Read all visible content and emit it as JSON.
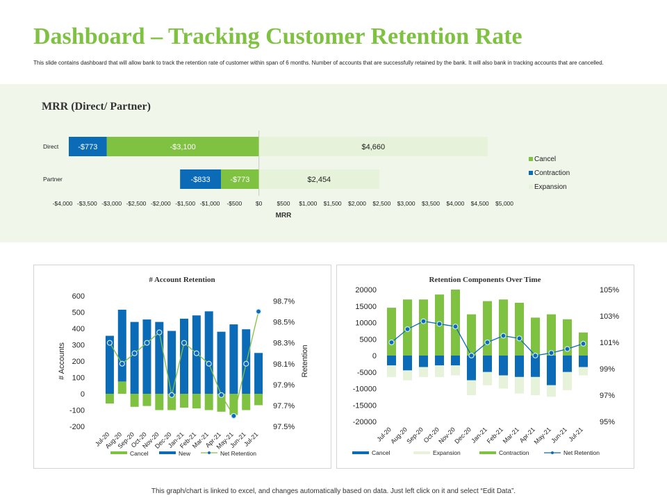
{
  "header": {
    "title": "Dashboard – Tracking Customer Retention Rate",
    "subtitle": "This slide contains dashboard that will allow bank to track the retention rate of customer within span of 6 months. Number of accounts that are successfully retained by the bank. It will also bank in tracking accounts that are cancelled."
  },
  "footer": {
    "note": "This graph/chart is linked to excel, and changes automatically based on data. Just left click on it and select “Edit Data”."
  },
  "colors": {
    "cancel": "#7fc241",
    "contraction": "#0b6bb7",
    "expansion": "#e6f2d9",
    "new": "#0b6bb7",
    "line": "#7fc241",
    "marker": "#0b6bb7"
  },
  "chart_data": [
    {
      "type": "bar",
      "orientation": "horizontal",
      "stacked": true,
      "title": "MRR (Direct/ Partner)",
      "xlabel": "MRR",
      "xlim": [
        -4000,
        5000
      ],
      "xticks": [
        "-$4,000",
        "-$3,500",
        "-$3,000",
        "-$2,500",
        "-$2,000",
        "-$1,500",
        "-$1,000",
        "-$500",
        "$0",
        "$500",
        "$1,000",
        "$1,500",
        "$2,000",
        "$2,500",
        "$3,000",
        "$3,500",
        "$4,000",
        "$4,500",
        "$5,000"
      ],
      "categories": [
        "Direct",
        "Partner"
      ],
      "series": [
        {
          "name": "Cancel",
          "values": [
            -3100,
            -773
          ],
          "labels": [
            "-$3,100",
            "-$773"
          ]
        },
        {
          "name": "Contraction",
          "values": [
            -773,
            -833
          ],
          "labels": [
            "-$773",
            "-$833"
          ]
        },
        {
          "name": "Expansion",
          "values": [
            4660,
            2454
          ],
          "labels": [
            "$4,660",
            "$2,454"
          ]
        }
      ],
      "legend": "right"
    },
    {
      "type": "bar",
      "title": "# Account Retention",
      "ylabel": "# Accounts",
      "y2label": "Retention",
      "ylim": [
        -200,
        600
      ],
      "yticks": [
        "600",
        "500",
        "400",
        "300",
        "200",
        "100",
        "0",
        "-100",
        "-200"
      ],
      "y2lim": [
        97.5,
        98.75
      ],
      "y2ticks": [
        "98.7%",
        "98.5%",
        "98.3%",
        "98.1%",
        "97.9%",
        "97.7%",
        "97.5%"
      ],
      "categories": [
        "Jul-20",
        "Aug-20",
        "Sep-20",
        "Oct-20",
        "Nov-20",
        "Dec-20",
        "Jan-21",
        "Feb-21",
        "Mar-21",
        "Apr-21",
        "May-21",
        "Jun-21",
        "Jul-21"
      ],
      "series": [
        {
          "name": "Cancel",
          "values": [
            -60,
            75,
            -80,
            -75,
            -100,
            -100,
            -85,
            -90,
            -100,
            -110,
            -130,
            -100,
            -70
          ]
        },
        {
          "name": "New",
          "values": [
            355,
            440,
            440,
            455,
            440,
            385,
            460,
            480,
            505,
            380,
            425,
            395,
            250
          ]
        },
        {
          "name": "Net Retention",
          "type": "line",
          "values": [
            98.3,
            98.1,
            98.2,
            98.3,
            98.4,
            97.8,
            98.3,
            98.2,
            98.1,
            97.8,
            97.6,
            98.1,
            98.6
          ]
        }
      ],
      "legend": "bottom"
    },
    {
      "type": "bar",
      "title": "Retention Components Over Time",
      "ylim": [
        -20000,
        20000
      ],
      "yticks": [
        "20000",
        "15000",
        "10000",
        "5000",
        "0",
        "-5000",
        "-10000",
        "-15000",
        "-20000"
      ],
      "y2lim": [
        95,
        105
      ],
      "y2ticks": [
        "105%",
        "103%",
        "101%",
        "99%",
        "97%",
        "95%"
      ],
      "categories": [
        "Jul-20",
        "Aug-20",
        "Sep-20",
        "Oct-20",
        "Nov-20",
        "Dec-20",
        "Jan-21",
        "Feb-21",
        "Mar-21",
        "Apr-21",
        "May-21",
        "Jun-21",
        "Jul-21"
      ],
      "series": [
        {
          "name": "Cancel",
          "values": [
            -3000,
            -4500,
            -3500,
            -3000,
            -3000,
            -7500,
            -5000,
            -6000,
            -6500,
            -6500,
            -9000,
            -5000,
            -3500
          ]
        },
        {
          "name": "Expansion",
          "values": [
            -3500,
            -3000,
            -3000,
            -3500,
            -3000,
            -4500,
            -4000,
            -4000,
            -5000,
            -5500,
            -3500,
            -5500,
            -2500
          ]
        },
        {
          "name": "Contraction",
          "values": [
            14500,
            17000,
            17000,
            18500,
            20000,
            12500,
            16500,
            17000,
            16000,
            11500,
            12500,
            11000,
            7000
          ]
        },
        {
          "name": "Net Retention",
          "type": "line",
          "values": [
            101,
            102,
            102.6,
            102.4,
            102.2,
            100,
            101,
            101.5,
            101.3,
            100,
            100.2,
            100.5,
            100.9
          ]
        }
      ],
      "legend": "bottom"
    }
  ]
}
